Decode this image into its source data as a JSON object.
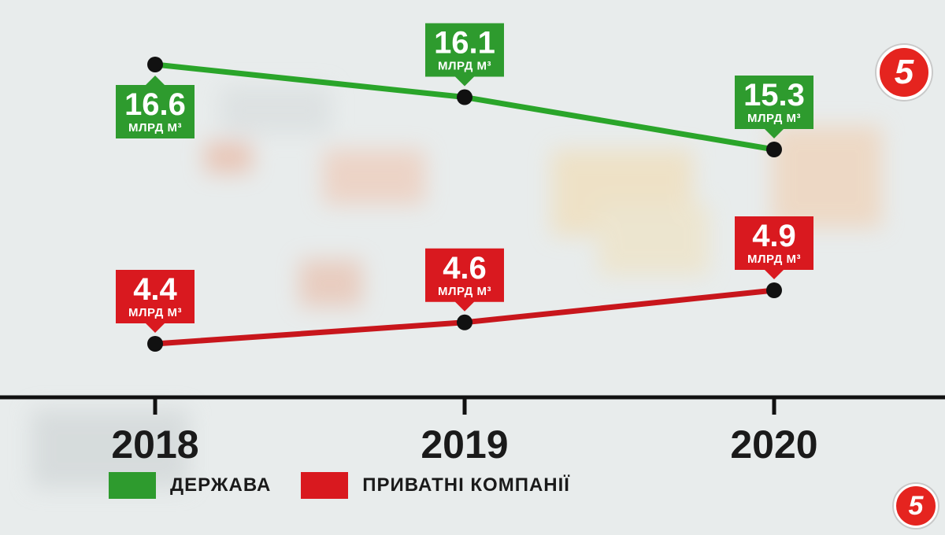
{
  "chart_data": {
    "type": "line",
    "categories": [
      "2018",
      "2019",
      "2020"
    ],
    "unit_label": "МЛРД М³",
    "series": [
      {
        "name": "ДЕРЖАВА",
        "values": [
          16.6,
          16.1,
          15.3
        ],
        "labels": [
          "16.6",
          "16.1",
          "15.3"
        ],
        "color": "#2e9b2e"
      },
      {
        "name": "ПРИВАТНІ КОМПАНІЇ",
        "values": [
          4.4,
          4.6,
          4.9
        ],
        "labels": [
          "4.4",
          "4.6",
          "4.9"
        ],
        "color": "#d9191f"
      }
    ],
    "legend_position": "bottom-left",
    "grid": false
  },
  "legend": {
    "items": [
      {
        "label": "ДЕРЖАВА",
        "color": "#2e9b2e"
      },
      {
        "label": "ПРИВАТНІ КОМПАНІЇ",
        "color": "#d9191f"
      }
    ]
  },
  "logos": {
    "top": "5",
    "bottom": "5"
  },
  "colors": {
    "axis": "#111111",
    "point": "#111111",
    "green_line": "#2aa52a",
    "red_line": "#c8161c"
  }
}
